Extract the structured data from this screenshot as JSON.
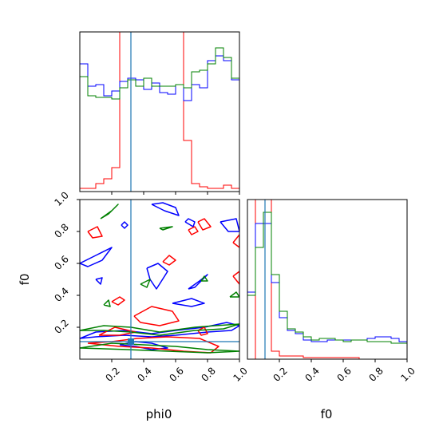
{
  "chart_data": {
    "type": "corner",
    "parameters": [
      "phi0",
      "f0"
    ],
    "truth": {
      "phi0": 0.32,
      "f0": 0.11
    },
    "colors": {
      "red": "#ff0000",
      "blue": "#0000ff",
      "green": "#008000",
      "truth": "#1f77b4"
    },
    "phi0_axis": {
      "xlabel": "phi0",
      "xlim": [
        0,
        1
      ],
      "ticks": [
        "0.2",
        "0.4",
        "0.6",
        "0.8",
        "1.0"
      ],
      "tick_values": [
        0.2,
        0.4,
        0.6,
        0.8,
        1.0
      ]
    },
    "f0_axis": {
      "ylabel": "f0",
      "xlabel": "f0",
      "lim": [
        0,
        1
      ],
      "ticks": [
        "0.2",
        "0.4",
        "0.6",
        "0.8",
        "1.0"
      ],
      "tick_values": [
        0.2,
        0.4,
        0.6,
        0.8,
        1.0
      ]
    },
    "hist_phi0": {
      "bins": 20,
      "series": [
        {
          "color": "red",
          "values": [
            0.02,
            0.02,
            0.05,
            0.08,
            0.15,
            1.05,
            1.05,
            1.05,
            1.05,
            1.05,
            1.05,
            1.05,
            1.05,
            0.32,
            0.05,
            0.03,
            0.02,
            0.02,
            0.04,
            0.02
          ]
        },
        {
          "color": "blue",
          "values": [
            0.8,
            0.66,
            0.67,
            0.6,
            0.63,
            0.69,
            0.71,
            0.7,
            0.64,
            0.68,
            0.62,
            0.61,
            0.67,
            0.57,
            0.67,
            0.65,
            0.82,
            0.85,
            0.82,
            0.7
          ]
        },
        {
          "color": "green",
          "values": [
            0.72,
            0.6,
            0.59,
            0.59,
            0.58,
            0.65,
            0.7,
            0.66,
            0.71,
            0.66,
            0.66,
            0.66,
            0.67,
            0.65,
            0.75,
            0.76,
            0.8,
            0.9,
            0.84,
            0.71
          ]
        }
      ]
    },
    "hist_f0": {
      "bins": 20,
      "series": [
        {
          "color": "red",
          "values": [
            0.0,
            1.05,
            1.05,
            0.05,
            0.02,
            0.02,
            0.02,
            0.01,
            0.01,
            0.01,
            0.01,
            0.01,
            0.01,
            0.01,
            0.0,
            0.0,
            0.0,
            0.0,
            0.0,
            0.0
          ]
        },
        {
          "color": "blue",
          "values": [
            0.42,
            0.85,
            0.85,
            0.48,
            0.26,
            0.18,
            0.16,
            0.12,
            0.11,
            0.11,
            0.12,
            0.12,
            0.12,
            0.12,
            0.12,
            0.13,
            0.14,
            0.14,
            0.13,
            0.11
          ]
        },
        {
          "color": "green",
          "values": [
            0.4,
            0.7,
            0.92,
            0.53,
            0.3,
            0.19,
            0.17,
            0.14,
            0.12,
            0.13,
            0.13,
            0.12,
            0.11,
            0.12,
            0.12,
            0.11,
            0.11,
            0.11,
            0.1,
            0.1
          ]
        }
      ]
    },
    "contours": [
      {
        "color": "blue",
        "points": [
          [
            0.45,
            0.97
          ],
          [
            0.53,
            0.93
          ],
          [
            0.62,
            0.9
          ],
          [
            0.6,
            0.95
          ],
          [
            0.52,
            0.98
          ],
          [
            0.45,
            0.97
          ]
        ]
      },
      {
        "color": "blue",
        "points": [
          [
            0.66,
            0.86
          ],
          [
            0.71,
            0.83
          ],
          [
            0.72,
            0.86
          ],
          [
            0.68,
            0.88
          ],
          [
            0.66,
            0.86
          ]
        ]
      },
      {
        "color": "blue",
        "points": [
          [
            0.26,
            0.84
          ],
          [
            0.28,
            0.82
          ],
          [
            0.3,
            0.84
          ],
          [
            0.28,
            0.86
          ],
          [
            0.26,
            0.84
          ]
        ]
      },
      {
        "color": "blue",
        "points": [
          [
            0.0,
            0.6
          ],
          [
            0.1,
            0.65
          ],
          [
            0.2,
            0.7
          ],
          [
            0.14,
            0.62
          ],
          [
            0.05,
            0.58
          ],
          [
            0.0,
            0.6
          ]
        ]
      },
      {
        "color": "blue",
        "points": [
          [
            0.42,
            0.57
          ],
          [
            0.49,
            0.6
          ],
          [
            0.55,
            0.55
          ],
          [
            0.48,
            0.44
          ],
          [
            0.44,
            0.5
          ],
          [
            0.42,
            0.57
          ]
        ]
      },
      {
        "color": "blue",
        "points": [
          [
            0.68,
            0.44
          ],
          [
            0.75,
            0.49
          ],
          [
            0.8,
            0.53
          ],
          [
            0.72,
            0.45
          ],
          [
            0.68,
            0.44
          ]
        ]
      },
      {
        "color": "blue",
        "points": [
          [
            0.1,
            0.5
          ],
          [
            0.13,
            0.47
          ],
          [
            0.14,
            0.51
          ],
          [
            0.1,
            0.5
          ]
        ]
      },
      {
        "color": "blue",
        "points": [
          [
            0.88,
            0.86
          ],
          [
            0.98,
            0.88
          ],
          [
            1.0,
            0.8
          ],
          [
            0.93,
            0.8
          ],
          [
            0.88,
            0.86
          ]
        ]
      },
      {
        "color": "blue",
        "points": [
          [
            0.58,
            0.35
          ],
          [
            0.7,
            0.38
          ],
          [
            0.78,
            0.35
          ],
          [
            0.7,
            0.33
          ],
          [
            0.58,
            0.35
          ]
        ]
      },
      {
        "color": "blue",
        "points": [
          [
            0.0,
            0.13
          ],
          [
            0.1,
            0.17
          ],
          [
            0.28,
            0.18
          ],
          [
            0.45,
            0.16
          ],
          [
            0.6,
            0.18
          ],
          [
            0.78,
            0.2
          ],
          [
            0.92,
            0.23
          ],
          [
            1.0,
            0.21
          ],
          [
            0.95,
            0.18
          ],
          [
            0.8,
            0.17
          ],
          [
            0.6,
            0.15
          ],
          [
            0.45,
            0.14
          ],
          [
            0.28,
            0.15
          ],
          [
            0.1,
            0.14
          ],
          [
            0.0,
            0.13
          ]
        ]
      },
      {
        "color": "blue",
        "points": [
          [
            0.25,
            0.09
          ],
          [
            0.35,
            0.11
          ],
          [
            0.45,
            0.1
          ],
          [
            0.55,
            0.07
          ],
          [
            0.45,
            0.06
          ],
          [
            0.35,
            0.08
          ],
          [
            0.25,
            0.09
          ]
        ]
      },
      {
        "color": "red",
        "points": [
          [
            0.05,
            0.8
          ],
          [
            0.11,
            0.83
          ],
          [
            0.14,
            0.77
          ],
          [
            0.08,
            0.76
          ],
          [
            0.05,
            0.8
          ]
        ]
      },
      {
        "color": "red",
        "points": [
          [
            0.2,
            0.36
          ],
          [
            0.25,
            0.39
          ],
          [
            0.28,
            0.37
          ],
          [
            0.24,
            0.34
          ],
          [
            0.2,
            0.36
          ]
        ]
      },
      {
        "color": "red",
        "points": [
          [
            0.52,
            0.61
          ],
          [
            0.56,
            0.65
          ],
          [
            0.6,
            0.62
          ],
          [
            0.56,
            0.59
          ],
          [
            0.52,
            0.61
          ]
        ]
      },
      {
        "color": "red",
        "points": [
          [
            0.68,
            0.81
          ],
          [
            0.72,
            0.83
          ],
          [
            0.74,
            0.8
          ],
          [
            0.7,
            0.78
          ],
          [
            0.68,
            0.81
          ]
        ]
      },
      {
        "color": "red",
        "points": [
          [
            0.74,
            0.86
          ],
          [
            0.78,
            0.88
          ],
          [
            0.82,
            0.83
          ],
          [
            0.77,
            0.81
          ],
          [
            0.74,
            0.86
          ]
        ]
      },
      {
        "color": "red",
        "points": [
          [
            0.96,
            0.73
          ],
          [
            1.0,
            0.78
          ],
          [
            1.0,
            0.7
          ],
          [
            0.96,
            0.73
          ]
        ]
      },
      {
        "color": "red",
        "points": [
          [
            0.96,
            0.52
          ],
          [
            1.0,
            0.55
          ],
          [
            1.0,
            0.47
          ],
          [
            0.96,
            0.52
          ]
        ]
      },
      {
        "color": "red",
        "points": [
          [
            0.34,
            0.27
          ],
          [
            0.45,
            0.33
          ],
          [
            0.58,
            0.3
          ],
          [
            0.62,
            0.24
          ],
          [
            0.5,
            0.21
          ],
          [
            0.38,
            0.23
          ],
          [
            0.34,
            0.27
          ]
        ]
      },
      {
        "color": "red",
        "points": [
          [
            0.05,
            0.1
          ],
          [
            0.2,
            0.11
          ],
          [
            0.36,
            0.13
          ],
          [
            0.55,
            0.14
          ],
          [
            0.75,
            0.13
          ],
          [
            0.87,
            0.08
          ],
          [
            0.82,
            0.04
          ],
          [
            0.65,
            0.05
          ],
          [
            0.45,
            0.07
          ],
          [
            0.25,
            0.08
          ],
          [
            0.05,
            0.1
          ]
        ]
      },
      {
        "color": "red",
        "points": [
          [
            0.74,
            0.18
          ],
          [
            0.78,
            0.2
          ],
          [
            0.8,
            0.16
          ],
          [
            0.76,
            0.15
          ],
          [
            0.74,
            0.18
          ]
        ]
      },
      {
        "color": "red",
        "points": [
          [
            0.12,
            0.15
          ],
          [
            0.22,
            0.2
          ],
          [
            0.35,
            0.17
          ],
          [
            0.25,
            0.15
          ],
          [
            0.12,
            0.15
          ]
        ]
      },
      {
        "color": "green",
        "points": [
          [
            0.13,
            0.88
          ],
          [
            0.2,
            0.93
          ],
          [
            0.24,
            0.97
          ],
          [
            0.18,
            0.91
          ],
          [
            0.13,
            0.88
          ]
        ]
      },
      {
        "color": "green",
        "points": [
          [
            0.5,
            0.82
          ],
          [
            0.58,
            0.83
          ],
          [
            0.52,
            0.81
          ],
          [
            0.5,
            0.82
          ]
        ]
      },
      {
        "color": "green",
        "points": [
          [
            0.38,
            0.47
          ],
          [
            0.44,
            0.5
          ],
          [
            0.42,
            0.45
          ],
          [
            0.38,
            0.47
          ]
        ]
      },
      {
        "color": "green",
        "points": [
          [
            0.76,
            0.49
          ],
          [
            0.78,
            0.52
          ],
          [
            0.8,
            0.49
          ],
          [
            0.76,
            0.49
          ]
        ]
      },
      {
        "color": "green",
        "points": [
          [
            0.94,
            0.39
          ],
          [
            0.98,
            0.42
          ],
          [
            1.0,
            0.39
          ],
          [
            0.94,
            0.39
          ]
        ]
      },
      {
        "color": "green",
        "points": [
          [
            0.15,
            0.34
          ],
          [
            0.18,
            0.37
          ],
          [
            0.19,
            0.33
          ],
          [
            0.15,
            0.34
          ]
        ]
      },
      {
        "color": "green",
        "points": [
          [
            0.0,
            0.18
          ],
          [
            0.15,
            0.21
          ],
          [
            0.32,
            0.2
          ],
          [
            0.5,
            0.17
          ],
          [
            0.72,
            0.2
          ],
          [
            0.85,
            0.21
          ],
          [
            1.0,
            0.22
          ],
          [
            0.9,
            0.19
          ],
          [
            0.72,
            0.18
          ],
          [
            0.5,
            0.15
          ],
          [
            0.32,
            0.17
          ],
          [
            0.15,
            0.18
          ],
          [
            0.0,
            0.18
          ]
        ]
      },
      {
        "color": "green",
        "points": [
          [
            0.0,
            0.07
          ],
          [
            0.2,
            0.1
          ],
          [
            0.4,
            0.09
          ],
          [
            0.6,
            0.08
          ],
          [
            0.8,
            0.06
          ],
          [
            1.0,
            0.05
          ],
          [
            0.8,
            0.04
          ],
          [
            0.55,
            0.05
          ],
          [
            0.3,
            0.06
          ],
          [
            0.0,
            0.07
          ]
        ]
      }
    ]
  }
}
